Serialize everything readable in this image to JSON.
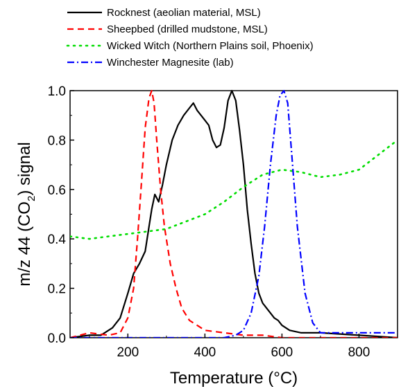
{
  "chart_data": {
    "type": "line",
    "xlabel": "Temperature (°C)",
    "ylabel_parts": [
      "m/z 44 (CO",
      "2",
      ") signal"
    ],
    "xlim": [
      50,
      900
    ],
    "ylim": [
      0,
      1.0
    ],
    "xticks": [
      200,
      400,
      600,
      800
    ],
    "yticks": [
      0.0,
      0.2,
      0.4,
      0.6,
      0.8,
      1.0
    ],
    "ytick_labels": [
      "0.0",
      "0.2",
      "0.4",
      "0.6",
      "0.8",
      "1.0"
    ],
    "xtick_labels": [
      "200",
      "400",
      "600",
      "800"
    ],
    "legend_position": "top",
    "series": [
      {
        "name": "Rocknest (aeolian material, MSL)",
        "color": "#000000",
        "style": "solid",
        "x": [
          50,
          100,
          130,
          160,
          180,
          200,
          215,
          230,
          245,
          255,
          262,
          270,
          280,
          290,
          300,
          315,
          330,
          345,
          360,
          370,
          380,
          390,
          400,
          410,
          420,
          430,
          440,
          450,
          460,
          470,
          475,
          480,
          490,
          500,
          510,
          520,
          530,
          540,
          550,
          560,
          570,
          580,
          590,
          600,
          620,
          650,
          700,
          800,
          900
        ],
        "y": [
          0.0,
          0.01,
          0.01,
          0.04,
          0.08,
          0.18,
          0.26,
          0.3,
          0.35,
          0.45,
          0.52,
          0.58,
          0.55,
          0.62,
          0.7,
          0.8,
          0.86,
          0.9,
          0.93,
          0.95,
          0.92,
          0.9,
          0.88,
          0.86,
          0.8,
          0.77,
          0.78,
          0.85,
          0.96,
          1.0,
          0.98,
          0.96,
          0.84,
          0.7,
          0.52,
          0.38,
          0.26,
          0.18,
          0.14,
          0.12,
          0.1,
          0.08,
          0.07,
          0.05,
          0.03,
          0.02,
          0.02,
          0.01,
          0.0
        ]
      },
      {
        "name": "Sheepbed  (drilled mudstone, MSL)",
        "color": "#ff0000",
        "style": "dash",
        "x": [
          50,
          100,
          150,
          180,
          200,
          215,
          225,
          235,
          245,
          255,
          262,
          268,
          275,
          285,
          295,
          310,
          325,
          340,
          360,
          380,
          400,
          450,
          500,
          550,
          600,
          700,
          800,
          900
        ],
        "y": [
          0.0,
          0.02,
          0.01,
          0.02,
          0.08,
          0.2,
          0.4,
          0.62,
          0.85,
          0.97,
          1.0,
          0.95,
          0.8,
          0.6,
          0.45,
          0.3,
          0.2,
          0.12,
          0.07,
          0.05,
          0.03,
          0.02,
          0.01,
          0.01,
          0.0,
          0.0,
          0.0,
          0.0
        ]
      },
      {
        "name": "Wicked Witch (Northern Plains soil, Phoenix)",
        "color": "#00dd00",
        "style": "dot",
        "x": [
          50,
          100,
          150,
          200,
          250,
          300,
          350,
          400,
          450,
          500,
          550,
          600,
          650,
          700,
          750,
          800,
          850,
          900
        ],
        "y": [
          0.41,
          0.4,
          0.41,
          0.42,
          0.43,
          0.44,
          0.47,
          0.5,
          0.55,
          0.61,
          0.66,
          0.68,
          0.67,
          0.65,
          0.66,
          0.68,
          0.74,
          0.8
        ]
      },
      {
        "name": "Winchester Magnesite (lab)",
        "color": "#0000ff",
        "style": "dashdot",
        "x": [
          50,
          200,
          400,
          450,
          480,
          500,
          520,
          540,
          555,
          570,
          585,
          595,
          605,
          615,
          625,
          640,
          660,
          680,
          700,
          750,
          800,
          900
        ],
        "y": [
          0.0,
          0.0,
          0.0,
          0.0,
          0.01,
          0.03,
          0.1,
          0.25,
          0.45,
          0.7,
          0.9,
          0.98,
          1.0,
          0.95,
          0.75,
          0.45,
          0.18,
          0.06,
          0.02,
          0.02,
          0.02,
          0.02
        ]
      }
    ]
  }
}
